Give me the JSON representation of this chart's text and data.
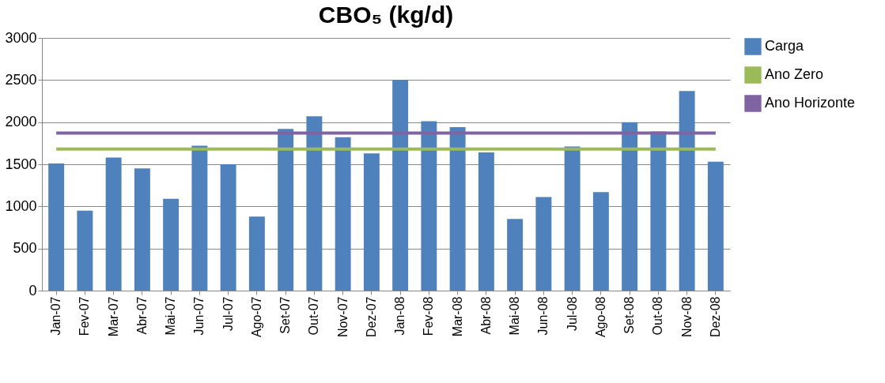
{
  "chart_data": {
    "type": "bar",
    "title": "CBO₅ (kg/d)",
    "categories": [
      "Jan-07",
      "Fev-07",
      "Mar-07",
      "Abr-07",
      "Mai-07",
      "Jun-07",
      "Jul-07",
      "Ago-07",
      "Set-07",
      "Out-07",
      "Nov-07",
      "Dez-07",
      "Jan-08",
      "Fev-08",
      "Mar-08",
      "Abr-08",
      "Mai-08",
      "Jun-08",
      "Jul-08",
      "Ago-08",
      "Set-08",
      "Out-08",
      "Nov-08",
      "Dez-08"
    ],
    "series": [
      {
        "name": "Carga",
        "color": "#4f81bd",
        "values": [
          1510,
          950,
          1580,
          1450,
          1090,
          1720,
          1500,
          880,
          1920,
          2070,
          1820,
          1630,
          2500,
          2010,
          1940,
          1640,
          850,
          1110,
          1710,
          1170,
          2000,
          1890,
          2370,
          1530
        ]
      },
      {
        "name": "Ano Zero",
        "type": "line",
        "color": "#9bbb59",
        "values": [
          1680,
          1680,
          1680,
          1680,
          1680,
          1680,
          1680,
          1680,
          1680,
          1680,
          1680,
          1680,
          1680,
          1680,
          1680,
          1680,
          1680,
          1680,
          1680,
          1680,
          1680,
          1680,
          1680,
          1680
        ]
      },
      {
        "name": "Ano Horizonte",
        "type": "line",
        "color": "#8064a2",
        "values": [
          1870,
          1870,
          1870,
          1870,
          1870,
          1870,
          1870,
          1870,
          1870,
          1870,
          1870,
          1870,
          1870,
          1870,
          1870,
          1870,
          1870,
          1870,
          1870,
          1870,
          1870,
          1870,
          1870,
          1870
        ]
      }
    ],
    "ylim": [
      0,
      3000
    ],
    "yticks": [
      0,
      500,
      1000,
      1500,
      2000,
      2500,
      3000
    ],
    "grid": "y",
    "legend": "right"
  }
}
